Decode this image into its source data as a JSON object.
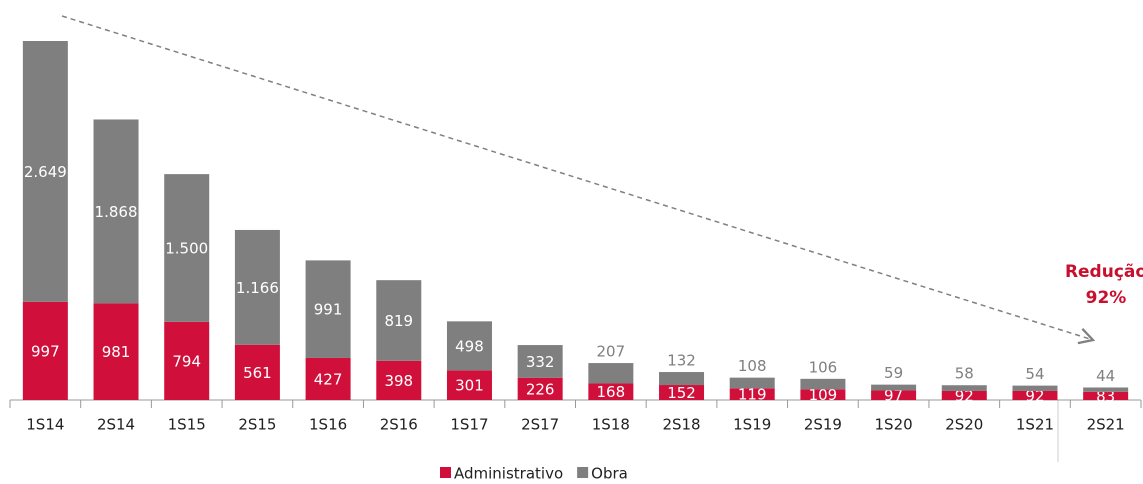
{
  "chart_data": {
    "type": "bar",
    "stacked": true,
    "categories": [
      "1S14",
      "2S14",
      "1S15",
      "2S15",
      "1S16",
      "2S16",
      "1S17",
      "2S17",
      "1S18",
      "2S18",
      "1S19",
      "2S19",
      "1S20",
      "2S20",
      "1S21",
      "2S21"
    ],
    "series": [
      {
        "name": "Administrativo",
        "color": "#d0103a",
        "values": [
          997,
          981,
          794,
          561,
          427,
          398,
          301,
          226,
          168,
          152,
          119,
          109,
          97,
          92,
          92,
          83
        ]
      },
      {
        "name": "Obra",
        "color": "#7f7f7f",
        "values": [
          2649,
          1868,
          1500,
          1166,
          991,
          819,
          498,
          332,
          207,
          132,
          108,
          106,
          59,
          58,
          54,
          44
        ],
        "value_labels": [
          "2.649",
          "1.868",
          "1.500",
          "1.166",
          "991",
          "819",
          "498",
          "332",
          "207",
          "132",
          "108",
          "106",
          "59",
          "58",
          "54",
          "44"
        ]
      }
    ],
    "annotation": [
      "Redução",
      "92%"
    ],
    "legend": "bottom"
  }
}
